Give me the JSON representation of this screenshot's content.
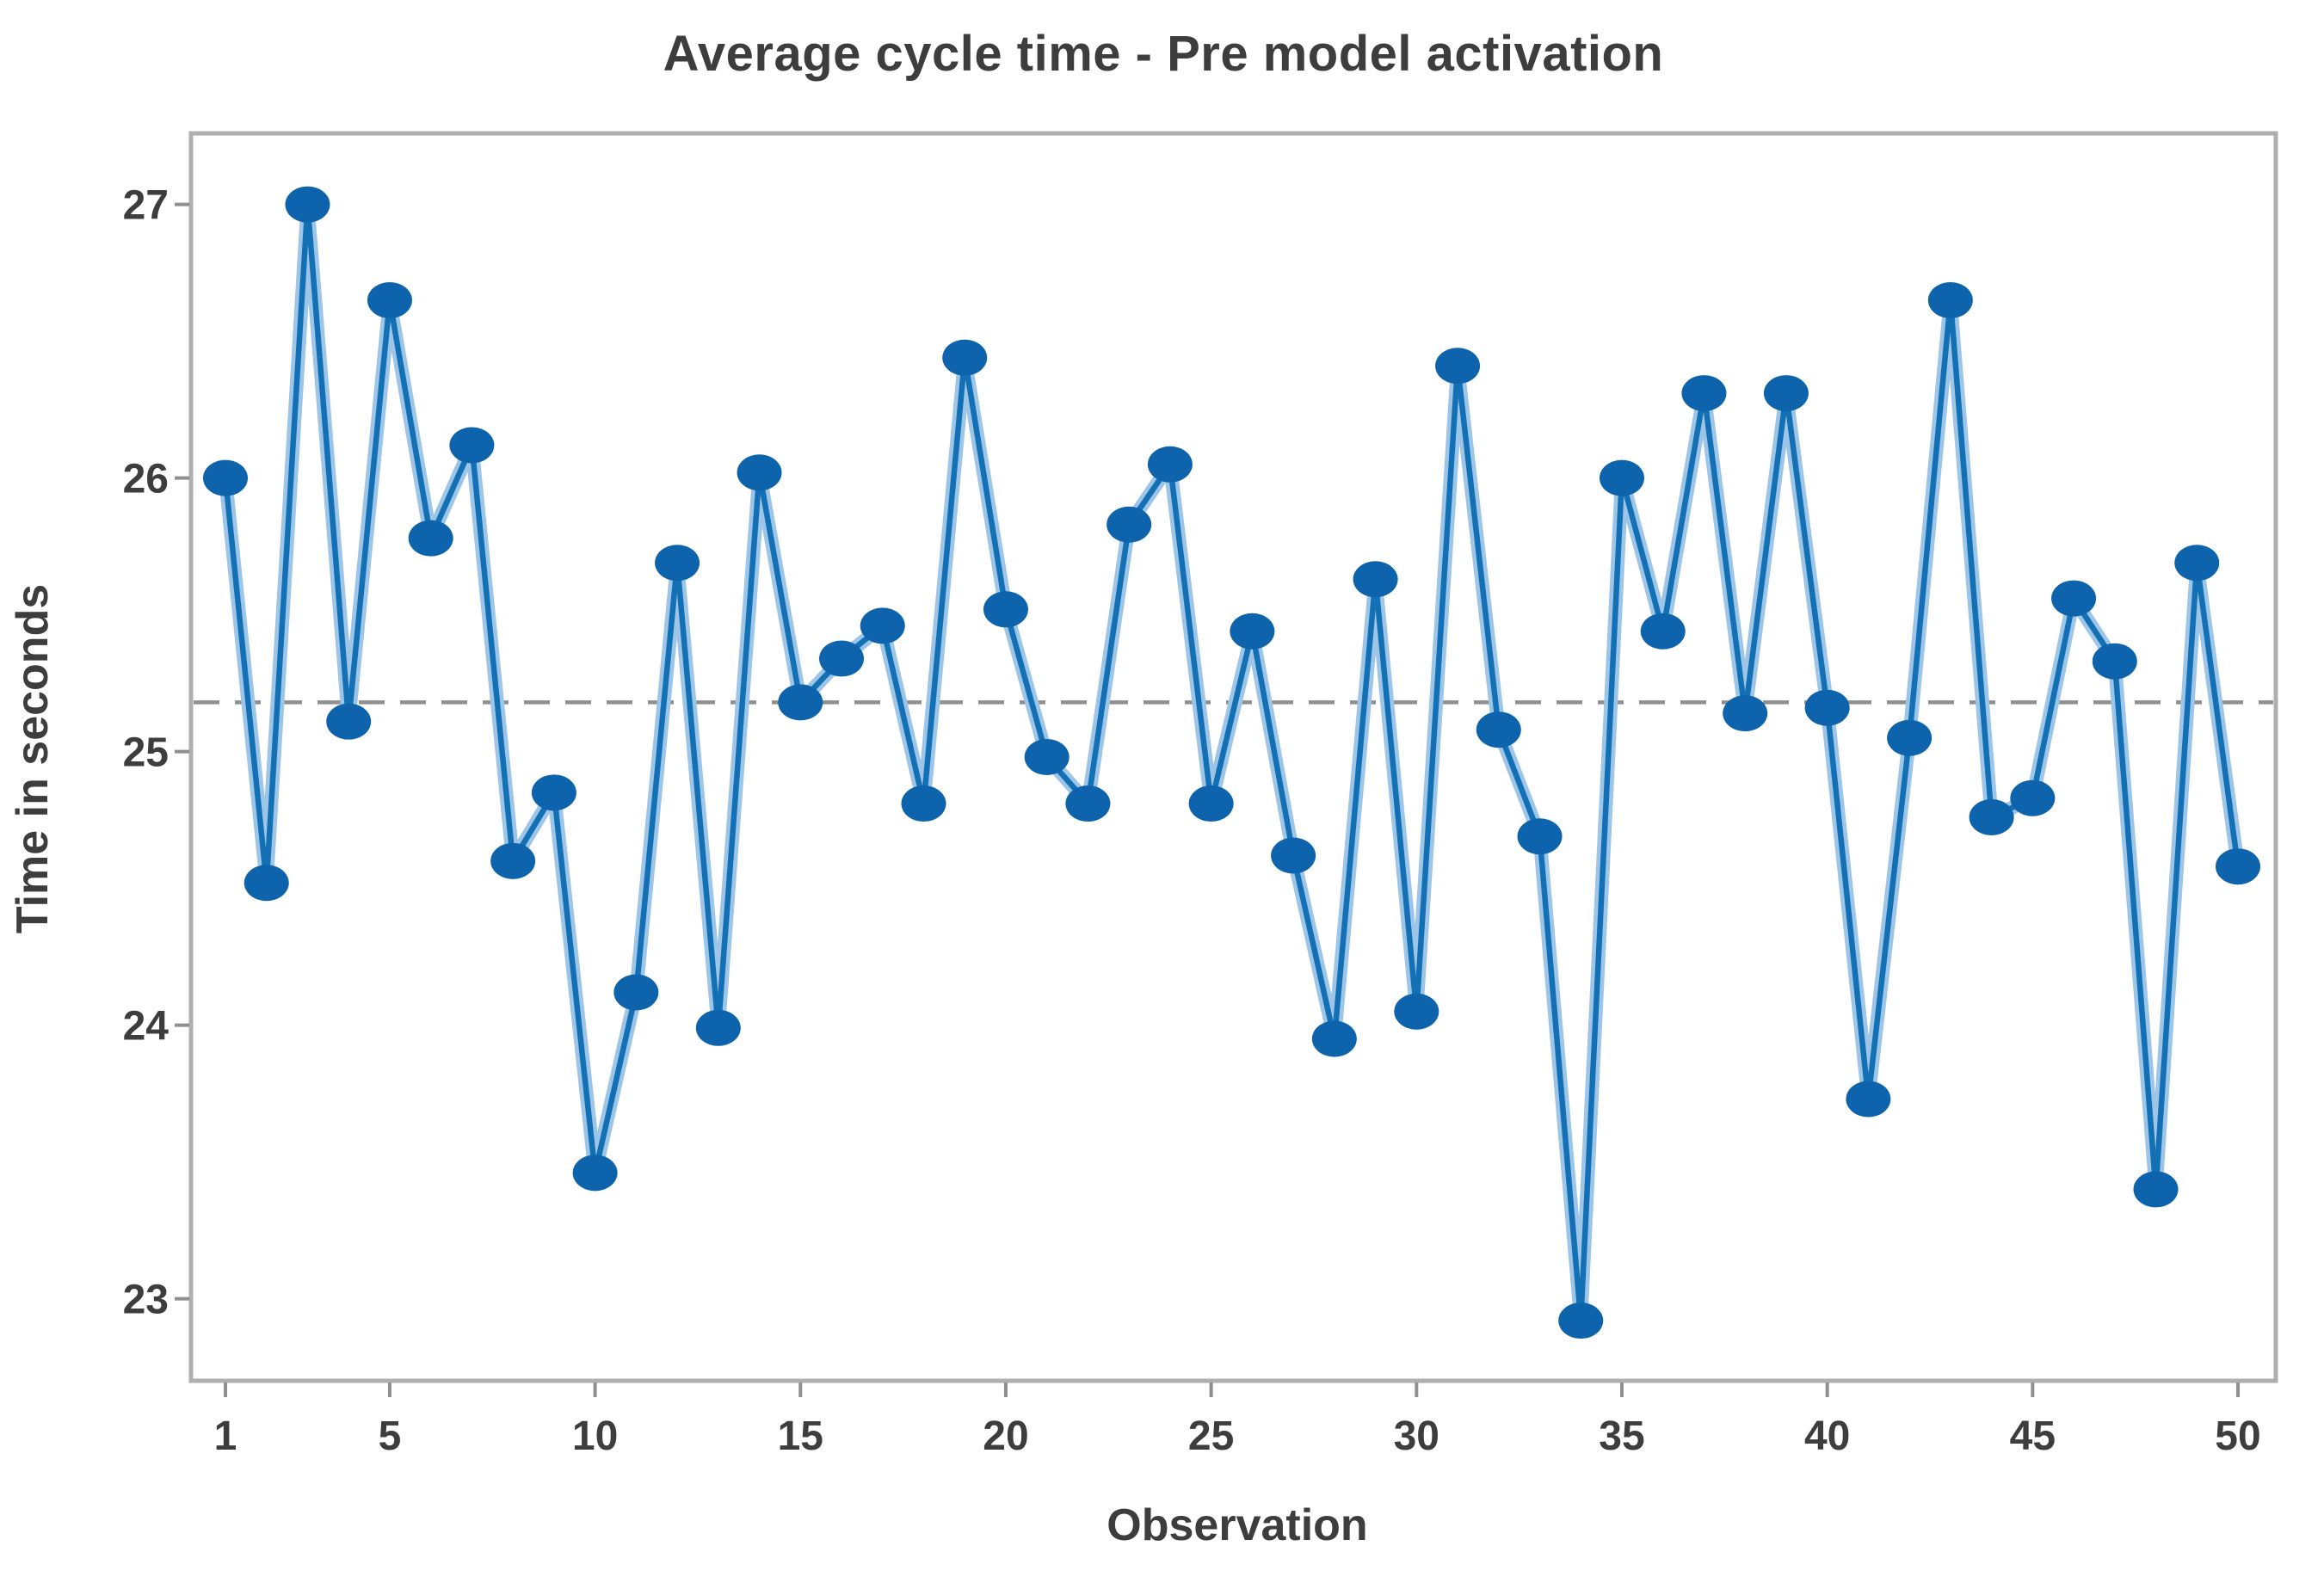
{
  "page": {
    "background": "#ffffff"
  },
  "chart_data": {
    "type": "line",
    "title": "Average cycle time - Pre model activation",
    "xlabel": "Observation",
    "ylabel": "Time in seconds",
    "legend": "none",
    "grid": "off",
    "marker": "filled-circle",
    "x": [
      1,
      2,
      3,
      4,
      5,
      6,
      7,
      8,
      9,
      10,
      11,
      12,
      13,
      14,
      15,
      16,
      17,
      18,
      19,
      20,
      21,
      22,
      23,
      24,
      25,
      26,
      27,
      28,
      29,
      30,
      31,
      32,
      33,
      34,
      35,
      36,
      37,
      38,
      39,
      40,
      41,
      42,
      43,
      44,
      45,
      46,
      47,
      48,
      49,
      50
    ],
    "values": [
      26.0,
      24.52,
      27.0,
      25.11,
      26.65,
      25.78,
      26.12,
      24.6,
      24.85,
      23.46,
      24.12,
      25.69,
      23.99,
      26.02,
      25.18,
      25.34,
      25.46,
      24.81,
      26.44,
      25.52,
      24.98,
      24.81,
      25.83,
      26.05,
      24.81,
      25.44,
      24.62,
      23.95,
      25.63,
      24.05,
      26.41,
      25.08,
      24.69,
      22.92,
      26.0,
      25.44,
      26.31,
      25.14,
      26.31,
      25.16,
      23.73,
      25.05,
      26.65,
      24.76,
      24.83,
      25.56,
      25.33,
      23.4,
      25.69,
      24.58
    ],
    "mean_line_y": 25.18,
    "mean_line_style": "dashed",
    "xticks": [
      1,
      5,
      10,
      15,
      20,
      25,
      30,
      35,
      40,
      45,
      50
    ],
    "yticks": [
      23,
      24,
      25,
      26,
      27
    ],
    "ylim": [
      22.7,
      27.26
    ],
    "xlim": [
      0.15,
      50.9
    ],
    "colors": {
      "marker": "#0d63ac",
      "line_core": "#1470b5",
      "line_halo": "#9cc5e8",
      "mean_line": "#8f8f8f",
      "frame": "#afafaf",
      "tick": "#8f8f8f",
      "text": "#3d3d3d",
      "background": "#ffffff"
    }
  }
}
